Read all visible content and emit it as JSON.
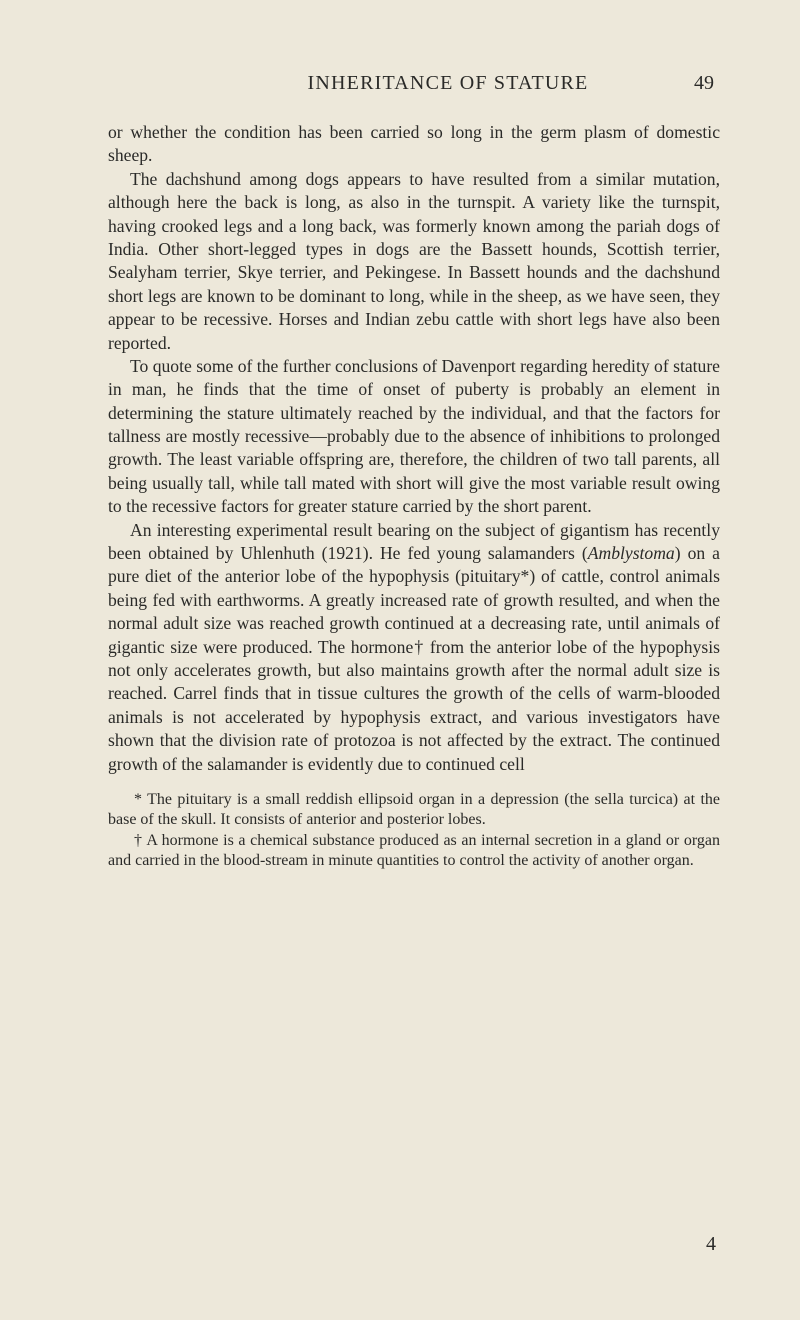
{
  "header": {
    "running_title": "INHERITANCE OF STATURE",
    "page_number": "49"
  },
  "paragraphs": {
    "p1": "or whether the condition has been carried so long in the germ plasm of domestic sheep.",
    "p2": "The dachshund among dogs appears to have resulted from a similar mutation, although here the back is long, as also in the turnspit. A variety like the turnspit, having crooked legs and a long back, was formerly known among the pariah dogs of India. Other short-legged types in dogs are the Bassett hounds, Scottish terrier, Sealyham terrier, Skye terrier, and Pekingese. In Bassett hounds and the dachshund short legs are known to be dominant to long, while in the sheep, as we have seen, they appear to be recessive. Horses and Indian zebu cattle with short legs have also been reported.",
    "p3": "To quote some of the further conclusions of Davenport regarding heredity of stature in man, he finds that the time of onset of puberty is probably an element in determining the stature ultimately reached by the individual, and that the factors for tallness are mostly recessive—probably due to the absence of inhibitions to prolonged growth. The least variable offspring are, therefore, the children of two tall parents, all being usually tall, while tall mated with short will give the most variable result owing to the recessive factors for greater stature carried by the short parent.",
    "p4_pre": "An interesting experimental result bearing on the subject of gigantism has recently been obtained by Uhlenhuth (1921). He fed young salamanders (",
    "p4_species": "Amblystoma",
    "p4_post": ") on a pure diet of the anterior lobe of the hypophysis (pituitary*) of cattle, control animals being fed with earthworms. A greatly increased rate of growth resulted, and when the normal adult size was reached growth continued at a decreasing rate, until animals of gigantic size were produced. The hormone† from the anterior lobe of the hypophysis not only accelerates growth, but also maintains growth after the normal adult size is reached. Carrel finds that in tissue cultures the growth of the cells of warm-blooded animals is not accelerated by hypophysis extract, and various investigators have shown that the division rate of protozoa is not affected by the extract. The continued growth of the salamander is evidently due to continued cell"
  },
  "footnotes": {
    "f1": "* The pituitary is a small reddish ellipsoid organ in a depression (the sella turcica) at the base of the skull. It consists of anterior and posterior lobes.",
    "f2": "† A hormone is a chemical substance produced as an internal secretion in a gland or organ and carried in the blood-stream in minute quantities to control the activity of another organ."
  },
  "signature": "4"
}
